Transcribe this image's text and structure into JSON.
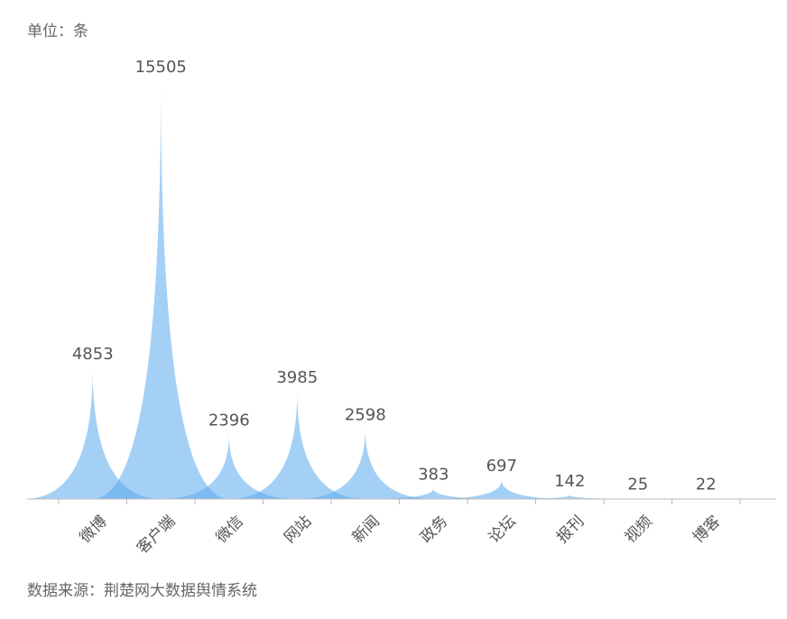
{
  "chart_data": {
    "type": "pictorial-spike",
    "unit_label": "单位：条",
    "source": "数据来源：荆楚网大数据舆情系统",
    "categories": [
      "微博",
      "客户端",
      "微信",
      "网站",
      "新闻",
      "政务",
      "论坛",
      "报刊",
      "视频",
      "博客"
    ],
    "values": [
      4853,
      15505,
      2396,
      3985,
      2598,
      383,
      697,
      142,
      25,
      22
    ],
    "color": "#5aa9ee",
    "ylim": [
      0,
      16000
    ]
  }
}
